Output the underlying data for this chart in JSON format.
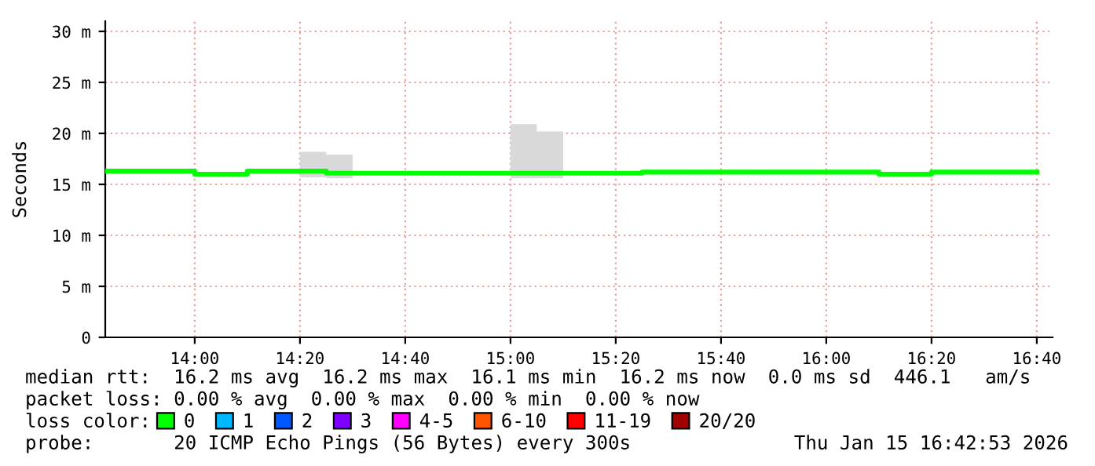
{
  "chart_data": {
    "type": "step",
    "ylabel": "Seconds",
    "x": [
      13.7167,
      13.75,
      13.8333,
      13.9167,
      14.0,
      14.0833,
      14.1667,
      14.25,
      14.3333,
      14.4167,
      14.5,
      14.5833,
      14.6667,
      14.75,
      14.8333,
      14.9167,
      15.0,
      15.0833,
      15.1667,
      15.25,
      15.3333,
      15.4167,
      15.5,
      15.5833,
      15.6667,
      15.75,
      15.8333,
      15.9167,
      16.0,
      16.0833,
      16.1667,
      16.25,
      16.3333,
      16.4167,
      16.5,
      16.5833,
      16.6667
    ],
    "series": [
      {
        "name": "0",
        "color": "#00ff00",
        "values": [
          16.3,
          16.3,
          16.3,
          16.3,
          16.0,
          16.0,
          16.3,
          16.3,
          16.3,
          16.1,
          16.1,
          16.1,
          16.1,
          16.1,
          16.1,
          16.1,
          16.1,
          16.1,
          16.1,
          16.1,
          16.1,
          16.2,
          16.2,
          16.2,
          16.2,
          16.2,
          16.2,
          16.2,
          16.2,
          16.2,
          16.0,
          16.0,
          16.2,
          16.2,
          16.2,
          16.2,
          16.2
        ],
        "lower": [
          null,
          null,
          null,
          null,
          null,
          null,
          null,
          null,
          15.7,
          15.6,
          16.1,
          null,
          null,
          null,
          null,
          null,
          15.6,
          15.6,
          16.1,
          null,
          null,
          null,
          null,
          null,
          null,
          null,
          null,
          null,
          null,
          null,
          null,
          null,
          null,
          null,
          null,
          null,
          null
        ],
        "upper": [
          null,
          null,
          null,
          null,
          null,
          null,
          null,
          null,
          18.2,
          17.9,
          16.1,
          null,
          null,
          null,
          null,
          null,
          20.9,
          20.2,
          16.1,
          null,
          null,
          null,
          null,
          null,
          null,
          null,
          null,
          null,
          null,
          null,
          null,
          null,
          null,
          null,
          null,
          null,
          null
        ]
      },
      {
        "name": "1",
        "color": "#00b8ff",
        "values": [
          null,
          null,
          null,
          null,
          null,
          null,
          null,
          null,
          null,
          null,
          null,
          null,
          null,
          null,
          null,
          null,
          null,
          null,
          null,
          null,
          null,
          null,
          null,
          null,
          null,
          null,
          null,
          null,
          null,
          null,
          null,
          null,
          null,
          null,
          null,
          null,
          null
        ]
      },
      {
        "name": "2",
        "color": "#0059ff",
        "values": [
          null,
          null,
          null,
          null,
          null,
          null,
          null,
          null,
          null,
          null,
          null,
          null,
          null,
          null,
          null,
          null,
          null,
          null,
          null,
          null,
          null,
          null,
          null,
          null,
          null,
          null,
          null,
          null,
          null,
          null,
          null,
          null,
          null,
          null,
          null,
          null,
          null
        ]
      },
      {
        "name": "3",
        "color": "#7e00ff",
        "values": [
          null,
          null,
          null,
          null,
          null,
          null,
          null,
          null,
          null,
          null,
          null,
          null,
          null,
          null,
          null,
          null,
          null,
          null,
          null,
          null,
          null,
          null,
          null,
          null,
          null,
          null,
          null,
          null,
          null,
          null,
          null,
          null,
          null,
          null,
          null,
          null,
          null
        ]
      },
      {
        "name": "4-5",
        "color": "#ff00ff",
        "values": [
          null,
          null,
          null,
          null,
          null,
          null,
          null,
          null,
          null,
          null,
          null,
          null,
          null,
          null,
          null,
          null,
          null,
          null,
          null,
          null,
          null,
          null,
          null,
          null,
          null,
          null,
          null,
          null,
          null,
          null,
          null,
          null,
          null,
          null,
          null,
          null,
          null
        ]
      },
      {
        "name": "6-10",
        "color": "#ff5500",
        "values": [
          null,
          null,
          null,
          null,
          null,
          null,
          null,
          null,
          null,
          null,
          null,
          null,
          null,
          null,
          null,
          null,
          null,
          null,
          null,
          null,
          null,
          null,
          null,
          null,
          null,
          null,
          null,
          null,
          null,
          null,
          null,
          null,
          null,
          null,
          null,
          null,
          null
        ]
      },
      {
        "name": "11-19",
        "color": "#ff0000",
        "values": [
          null,
          null,
          null,
          null,
          null,
          null,
          null,
          null,
          null,
          null,
          null,
          null,
          null,
          null,
          null,
          null,
          null,
          null,
          null,
          null,
          null,
          null,
          null,
          null,
          null,
          null,
          null,
          null,
          null,
          null,
          null,
          null,
          null,
          null,
          null,
          null,
          null
        ]
      },
      {
        "name": "20/20",
        "color": "#a10000",
        "values": [
          null,
          null,
          null,
          null,
          null,
          null,
          null,
          null,
          null,
          null,
          null,
          null,
          null,
          null,
          null,
          null,
          null,
          null,
          null,
          null,
          null,
          null,
          null,
          null,
          null,
          null,
          null,
          null,
          null,
          null,
          null,
          null,
          null,
          null,
          null,
          null,
          null
        ]
      }
    ],
    "legend_title": "loss color:",
    "legend": "bottom",
    "xlim": [
      13.7167,
      16.7167
    ],
    "xticks": [
      {
        "value": 14.0,
        "label": "14:00"
      },
      {
        "value": 14.3333,
        "label": "14:20"
      },
      {
        "value": 14.6667,
        "label": "14:40"
      },
      {
        "value": 15.0,
        "label": "15:00"
      },
      {
        "value": 15.3333,
        "label": "15:20"
      },
      {
        "value": 15.6667,
        "label": "15:40"
      },
      {
        "value": 16.0,
        "label": "16:00"
      },
      {
        "value": 16.3333,
        "label": "16:20"
      },
      {
        "value": 16.6667,
        "label": "16:40"
      }
    ],
    "ylim": [
      0,
      31
    ],
    "yticks": [
      0,
      {
        "value": 5,
        "label": "5 m"
      },
      {
        "value": 10,
        "label": "10 m"
      },
      {
        "value": 15,
        "label": "15 m"
      },
      {
        "value": 20,
        "label": "20 m"
      },
      {
        "value": 25,
        "label": "25 m"
      },
      {
        "value": 30,
        "label": "30 m"
      }
    ],
    "grid": true,
    "annotations": [
      "median rtt:  16.2 ms avg  16.2 ms max  16.1 ms min  16.2 ms now  0.0 ms sd  446.1   am/s",
      "packet loss: 0.00 % avg  0.00 % max  0.00 % min  0.00 % now",
      "probe:       20 ICMP Echo Pings (56 Bytes) every 300s",
      "Thu Jan 15 16:42:53 2026"
    ]
  }
}
